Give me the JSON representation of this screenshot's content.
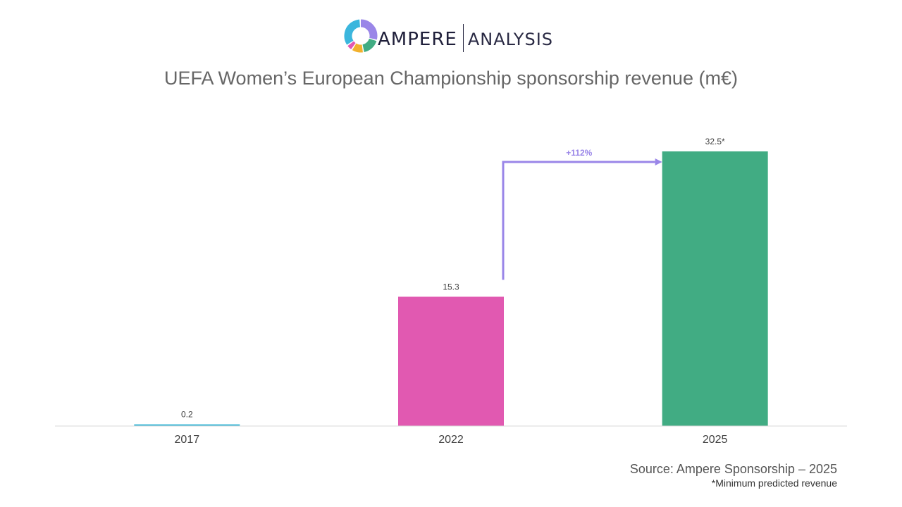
{
  "logo": {
    "brand": "AMPERE",
    "product": "ANALYSIS",
    "colors": [
      "#9a86e8",
      "#41ac83",
      "#f2b12d",
      "#e159b1",
      "#3bb6dd"
    ]
  },
  "chart_data": {
    "type": "bar",
    "title": "UEFA Women’s European Championship sponsorship revenue (m€)",
    "categories": [
      "2017",
      "2022",
      "2025"
    ],
    "values": [
      0.2,
      15.3,
      32.5
    ],
    "value_labels": [
      "0.2",
      "15.3",
      "32.5*"
    ],
    "colors": [
      "#3bb6d6",
      "#e159b1",
      "#41ac83"
    ],
    "ylim": [
      0,
      32.5
    ],
    "grid": false,
    "legend": "none",
    "annotation": {
      "text": "+112%",
      "from": "2022",
      "to": "2025",
      "color": "#9a86e8"
    }
  },
  "footer": {
    "source": "Source: Ampere Sponsorship – 2025",
    "note": "*Minimum predicted revenue"
  }
}
